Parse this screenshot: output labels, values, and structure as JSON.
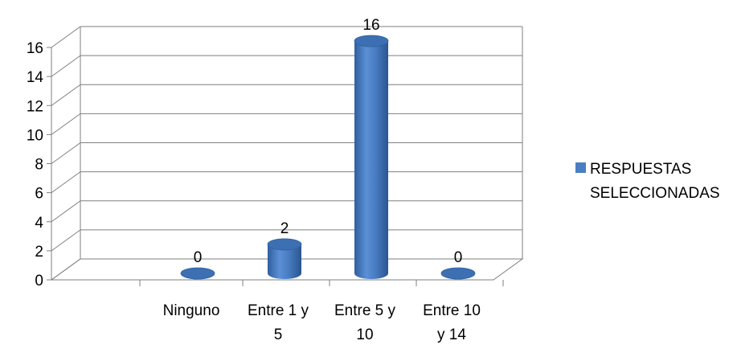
{
  "chart_data": {
    "type": "bar",
    "style": "3d-cylinder",
    "categories": [
      [
        "Ninguno"
      ],
      [
        "Entre 1 y",
        "5"
      ],
      [
        "Entre 5 y",
        "10"
      ],
      [
        "Entre 10",
        "y 14"
      ]
    ],
    "series": [
      {
        "name": "RESPUESTAS SELECCIONADAS",
        "legend_lines": [
          "RESPUESTAS",
          "SELECCIONADAS"
        ],
        "values": [
          0,
          2,
          16,
          0
        ]
      }
    ],
    "data_labels": [
      "0",
      "2",
      "16",
      "0"
    ],
    "ylim": [
      0,
      16
    ],
    "yticks": [
      0,
      2,
      4,
      6,
      8,
      10,
      12,
      14,
      16
    ],
    "grid": true,
    "legend_position": "right",
    "colors": {
      "bar": "#4a7ec4",
      "bar_dark": "#2f5f9e",
      "bar_top": "#3d6fb3",
      "grid": "#7f7f7f"
    }
  }
}
